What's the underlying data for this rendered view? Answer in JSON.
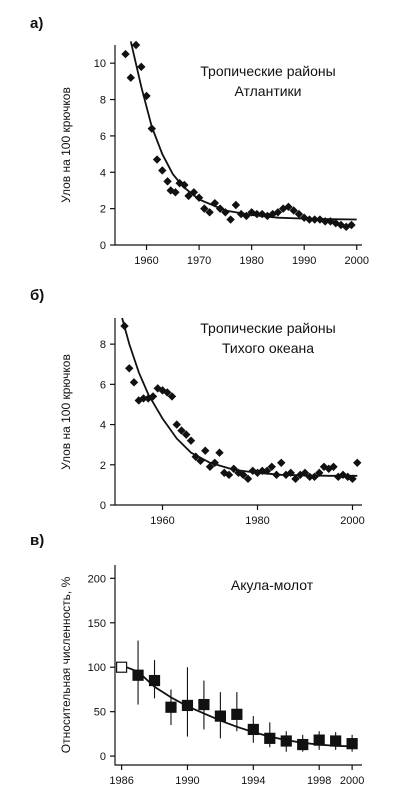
{
  "chart_data": [
    {
      "type": "scatter",
      "panel_label": "а)",
      "annotation": [
        "Тропические районы",
        "Атлантики"
      ],
      "ylabel": "Улов на 100 крючков",
      "xlabel": "",
      "xlim": [
        1954,
        2001
      ],
      "ylim": [
        0,
        11
      ],
      "xticks": [
        1960,
        1970,
        1980,
        1990,
        2000
      ],
      "yticks": [
        0,
        2,
        4,
        6,
        8,
        10
      ],
      "points": [
        [
          1956,
          10.5
        ],
        [
          1957,
          9.2
        ],
        [
          1958,
          11.0
        ],
        [
          1959,
          9.8
        ],
        [
          1960,
          8.2
        ],
        [
          1961,
          6.4
        ],
        [
          1962,
          4.7
        ],
        [
          1963,
          4.1
        ],
        [
          1964,
          3.5
        ],
        [
          1964.6,
          3.0
        ],
        [
          1965.5,
          2.9
        ],
        [
          1966.3,
          3.4
        ],
        [
          1967.2,
          3.3
        ],
        [
          1968,
          2.7
        ],
        [
          1969,
          2.9
        ],
        [
          1970,
          2.6
        ],
        [
          1971,
          2.0
        ],
        [
          1972,
          1.8
        ],
        [
          1973,
          2.3
        ],
        [
          1974,
          2.0
        ],
        [
          1975,
          1.8
        ],
        [
          1976,
          1.4
        ],
        [
          1977,
          2.2
        ],
        [
          1978,
          1.7
        ],
        [
          1979,
          1.6
        ],
        [
          1980,
          1.8
        ],
        [
          1981,
          1.7
        ],
        [
          1982,
          1.7
        ],
        [
          1983,
          1.6
        ],
        [
          1984,
          1.7
        ],
        [
          1985,
          1.8
        ],
        [
          1986,
          2.0
        ],
        [
          1987,
          2.1
        ],
        [
          1988,
          1.9
        ],
        [
          1989,
          1.7
        ],
        [
          1990,
          1.5
        ],
        [
          1991,
          1.4
        ],
        [
          1992,
          1.4
        ],
        [
          1993,
          1.4
        ],
        [
          1994,
          1.3
        ],
        [
          1995,
          1.3
        ],
        [
          1996,
          1.2
        ],
        [
          1997,
          1.1
        ],
        [
          1998,
          1.0
        ],
        [
          1999,
          1.1
        ]
      ],
      "fit": [
        [
          1957,
          11.2
        ],
        [
          1959,
          8.7
        ],
        [
          1961,
          6.5
        ],
        [
          1963,
          5.0
        ],
        [
          1965,
          3.9
        ],
        [
          1967,
          3.2
        ],
        [
          1970,
          2.5
        ],
        [
          1975,
          1.9
        ],
        [
          1980,
          1.65
        ],
        [
          1985,
          1.5
        ],
        [
          1990,
          1.45
        ],
        [
          1995,
          1.42
        ],
        [
          2000,
          1.4
        ]
      ]
    },
    {
      "type": "scatter",
      "panel_label": "б)",
      "annotation": [
        "Тропические районы",
        "Тихого океана"
      ],
      "ylabel": "Улов на 100 крючков",
      "xlabel": "",
      "xlim": [
        1950,
        2002
      ],
      "ylim": [
        0,
        9.3
      ],
      "xticks": [
        1960,
        1980,
        2000
      ],
      "yticks": [
        0,
        2,
        4,
        6,
        8
      ],
      "points": [
        [
          1952,
          8.9
        ],
        [
          1953,
          6.8
        ],
        [
          1954,
          6.1
        ],
        [
          1955,
          5.2
        ],
        [
          1956,
          5.3
        ],
        [
          1957,
          5.3
        ],
        [
          1958,
          5.4
        ],
        [
          1959,
          5.8
        ],
        [
          1960,
          5.7
        ],
        [
          1961,
          5.6
        ],
        [
          1962,
          5.4
        ],
        [
          1963,
          4.0
        ],
        [
          1964,
          3.7
        ],
        [
          1965,
          3.5
        ],
        [
          1966,
          3.2
        ],
        [
          1967,
          2.4
        ],
        [
          1968,
          2.2
        ],
        [
          1969,
          2.7
        ],
        [
          1970,
          1.9
        ],
        [
          1971,
          2.1
        ],
        [
          1972,
          2.6
        ],
        [
          1973,
          1.6
        ],
        [
          1974,
          1.5
        ],
        [
          1975,
          1.8
        ],
        [
          1976,
          1.6
        ],
        [
          1977,
          1.5
        ],
        [
          1978,
          1.3
        ],
        [
          1979,
          1.7
        ],
        [
          1980,
          1.6
        ],
        [
          1981,
          1.7
        ],
        [
          1982,
          1.7
        ],
        [
          1983,
          1.9
        ],
        [
          1984,
          1.5
        ],
        [
          1985,
          2.1
        ],
        [
          1986,
          1.5
        ],
        [
          1987,
          1.6
        ],
        [
          1988,
          1.3
        ],
        [
          1989,
          1.5
        ],
        [
          1990,
          1.6
        ],
        [
          1991,
          1.4
        ],
        [
          1992,
          1.4
        ],
        [
          1993,
          1.6
        ],
        [
          1994,
          1.9
        ],
        [
          1995,
          1.8
        ],
        [
          1996,
          1.9
        ],
        [
          1997,
          1.4
        ],
        [
          1998,
          1.5
        ],
        [
          1999,
          1.4
        ],
        [
          2000,
          1.3
        ],
        [
          2001,
          2.1
        ]
      ],
      "fit": [
        [
          1951.5,
          9.3
        ],
        [
          1953,
          8.0
        ],
        [
          1955,
          6.6
        ],
        [
          1957,
          5.5
        ],
        [
          1960,
          4.3
        ],
        [
          1963,
          3.3
        ],
        [
          1966,
          2.6
        ],
        [
          1970,
          2.1
        ],
        [
          1975,
          1.75
        ],
        [
          1980,
          1.6
        ],
        [
          1985,
          1.5
        ],
        [
          1990,
          1.47
        ],
        [
          1995,
          1.45
        ],
        [
          2001,
          1.45
        ]
      ]
    },
    {
      "type": "scatter",
      "panel_label": "в)",
      "annotation": [
        "Акула-молот"
      ],
      "ylabel": "Относительная численность, %",
      "xlabel": "",
      "xlim": [
        1985.6,
        2000.6
      ],
      "ylim": [
        -10,
        215
      ],
      "xticks": [
        1986,
        1990,
        1994,
        1998,
        2000
      ],
      "yticks": [
        0,
        50,
        100,
        150,
        200
      ],
      "points": [
        {
          "x": 1986,
          "y": 100,
          "lo": 100,
          "hi": 100,
          "open": true
        },
        {
          "x": 1987,
          "y": 91,
          "lo": 58,
          "hi": 130
        },
        {
          "x": 1988,
          "y": 85,
          "lo": 65,
          "hi": 108
        },
        {
          "x": 1989,
          "y": 55,
          "lo": 35,
          "hi": 75
        },
        {
          "x": 1990,
          "y": 57,
          "lo": 22,
          "hi": 100
        },
        {
          "x": 1991,
          "y": 58,
          "lo": 30,
          "hi": 85
        },
        {
          "x": 1992,
          "y": 45,
          "lo": 20,
          "hi": 72
        },
        {
          "x": 1993,
          "y": 47,
          "lo": 28,
          "hi": 72
        },
        {
          "x": 1994,
          "y": 30,
          "lo": 15,
          "hi": 45
        },
        {
          "x": 1995,
          "y": 20,
          "lo": 10,
          "hi": 38
        },
        {
          "x": 1996,
          "y": 17,
          "lo": 5,
          "hi": 28
        },
        {
          "x": 1997,
          "y": 13,
          "lo": 5,
          "hi": 24
        },
        {
          "x": 1998,
          "y": 18,
          "lo": 7,
          "hi": 28
        },
        {
          "x": 1999,
          "y": 17,
          "lo": 7,
          "hi": 27
        },
        {
          "x": 2000,
          "y": 14,
          "lo": 5,
          "hi": 24
        }
      ],
      "fit": [
        [
          1986,
          102
        ],
        [
          1987,
          95
        ],
        [
          1988,
          78
        ],
        [
          1989,
          66
        ],
        [
          1990,
          56
        ],
        [
          1991,
          48
        ],
        [
          1992,
          40
        ],
        [
          1993,
          33
        ],
        [
          1994,
          27
        ],
        [
          1995,
          22
        ],
        [
          1996,
          18
        ],
        [
          1997,
          15
        ],
        [
          1998,
          13
        ],
        [
          1999,
          11.5
        ],
        [
          2000,
          11
        ]
      ]
    }
  ]
}
